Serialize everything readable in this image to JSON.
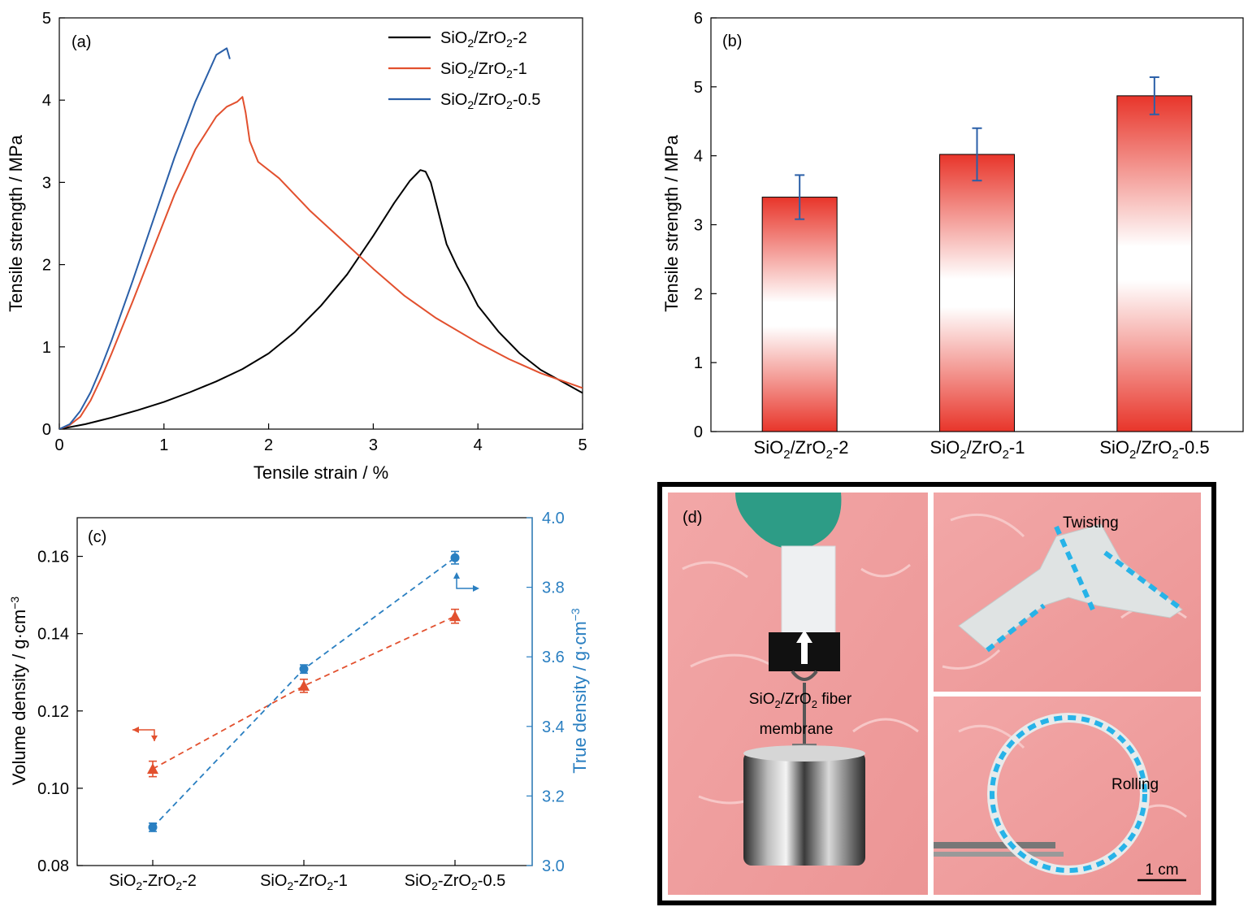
{
  "chart_data": [
    {
      "panel": "(a)",
      "type": "line",
      "xlabel": "Tensile strain / %",
      "ylabel": "Tensile strength / MPa",
      "xlim": [
        0,
        5
      ],
      "ylim": [
        0,
        5
      ],
      "xticks": [
        "0",
        "1",
        "2",
        "3",
        "4",
        "5"
      ],
      "yticks": [
        "0",
        "1",
        "2",
        "3",
        "4",
        "5"
      ],
      "legend_position": "top-right",
      "series": [
        {
          "name": "SiO2/ZrO2-2",
          "color": "#000000",
          "x": [
            0,
            0.25,
            0.5,
            0.75,
            1.0,
            1.25,
            1.5,
            1.75,
            2.0,
            2.25,
            2.5,
            2.75,
            3.0,
            3.2,
            3.35,
            3.45,
            3.5,
            3.55,
            3.6,
            3.65,
            3.7,
            3.8,
            3.9,
            4.0,
            4.2,
            4.4,
            4.6,
            4.8,
            5.0
          ],
          "y": [
            0,
            0.06,
            0.14,
            0.23,
            0.33,
            0.45,
            0.58,
            0.73,
            0.92,
            1.18,
            1.5,
            1.88,
            2.35,
            2.75,
            3.02,
            3.15,
            3.13,
            3.0,
            2.75,
            2.5,
            2.25,
            1.98,
            1.75,
            1.5,
            1.18,
            0.92,
            0.72,
            0.58,
            0.44
          ]
        },
        {
          "name": "SiO2/ZrO2-1",
          "color": "#e2502e",
          "x": [
            0,
            0.1,
            0.2,
            0.3,
            0.4,
            0.5,
            0.7,
            0.9,
            1.1,
            1.3,
            1.5,
            1.6,
            1.7,
            1.75,
            1.78,
            1.82,
            1.9,
            2.1,
            2.4,
            2.7,
            3.0,
            3.3,
            3.6,
            4.0,
            4.3,
            4.6,
            5.0
          ],
          "y": [
            0,
            0.05,
            0.15,
            0.35,
            0.62,
            0.92,
            1.55,
            2.2,
            2.85,
            3.4,
            3.8,
            3.92,
            3.98,
            4.04,
            3.85,
            3.5,
            3.25,
            3.05,
            2.65,
            2.3,
            1.95,
            1.62,
            1.35,
            1.05,
            0.85,
            0.68,
            0.5
          ]
        },
        {
          "name": "SiO2/ZrO2-0.5",
          "color": "#2a5fa8",
          "x": [
            0,
            0.1,
            0.2,
            0.3,
            0.4,
            0.5,
            0.7,
            0.9,
            1.1,
            1.3,
            1.5,
            1.6,
            1.63
          ],
          "y": [
            0,
            0.06,
            0.22,
            0.45,
            0.75,
            1.08,
            1.8,
            2.55,
            3.3,
            3.98,
            4.55,
            4.63,
            4.5
          ]
        }
      ]
    },
    {
      "panel": "(b)",
      "type": "bar",
      "ylabel": "Tensile strength / MPa",
      "ylim": [
        0,
        6
      ],
      "yticks": [
        "0",
        "1",
        "2",
        "3",
        "4",
        "5",
        "6"
      ],
      "categories": [
        "SiO2/ZrO2-2",
        "SiO2/ZrO2-1",
        "SiO2/ZrO2-0.5"
      ],
      "values": [
        3.4,
        4.02,
        4.87
      ],
      "errors": [
        0.32,
        0.38,
        0.27
      ],
      "bar_color": "#e8352a",
      "error_color": "#2a5fa8"
    },
    {
      "panel": "(c)",
      "type": "scatter",
      "ylabel_left": "Volume density / g·cm−3",
      "ylabel_right": "True density / g·cm−3",
      "ylim_left": [
        0.08,
        0.17
      ],
      "ylim_right": [
        3.0,
        4.0
      ],
      "yticks_left": [
        "0.08",
        "0.10",
        "0.12",
        "0.14",
        "0.16"
      ],
      "yticks_right": [
        "3.0",
        "3.2",
        "3.4",
        "3.6",
        "3.8",
        "4.0"
      ],
      "categories": [
        "SiO2-ZrO2-2",
        "SiO2-ZrO2-1",
        "SiO2-ZrO2-0.5"
      ],
      "series": [
        {
          "name": "Volume density",
          "axis": "left",
          "color": "#e2502e",
          "marker": "triangle",
          "values": [
            0.105,
            0.1265,
            0.1445
          ],
          "errors": [
            0.002,
            0.0017,
            0.0018
          ]
        },
        {
          "name": "True density",
          "axis": "right",
          "color": "#2a7fc1",
          "marker": "circle",
          "values": [
            3.11,
            3.565,
            3.885
          ],
          "errors": [
            0.012,
            0.012,
            0.018
          ]
        }
      ]
    }
  ],
  "panel_d": {
    "label": "(d)",
    "membrane_label_line1": "SiO",
    "membrane_label_sub1": "2",
    "membrane_label_mid": "/ZrO",
    "membrane_label_sub2": "2",
    "membrane_label_tail": " fiber",
    "membrane_label_line2": "membrane",
    "twisting_label": "Twisting",
    "rolling_label": "Rolling",
    "scale_bar_label": "1 cm"
  }
}
